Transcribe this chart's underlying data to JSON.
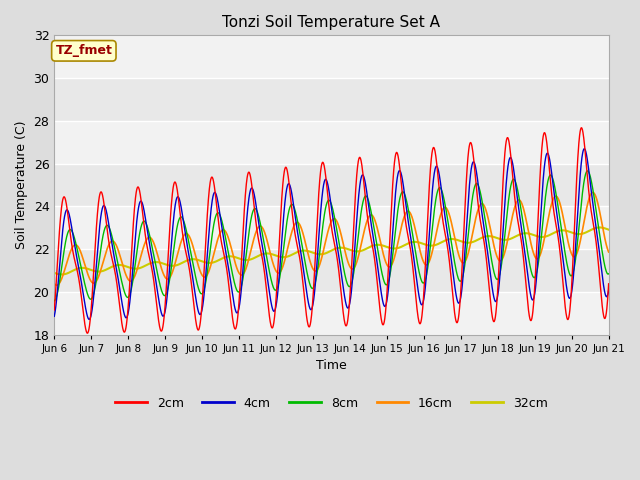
{
  "title": "Tonzi Soil Temperature Set A",
  "xlabel": "Time",
  "ylabel": "Soil Temperature (C)",
  "ylim": [
    18,
    32
  ],
  "yticks": [
    18,
    20,
    22,
    24,
    26,
    28,
    30,
    32
  ],
  "x_labels": [
    "Jun 6",
    "Jun 7",
    "Jun 8",
    "Jun 9",
    "Jun 10",
    "Jun 11",
    "Jun 12",
    "Jun 13",
    "Jun 14",
    "Jun 15",
    "Jun 16",
    "Jun 17",
    "Jun 18",
    "Jun 19",
    "Jun 20",
    "Jun 21"
  ],
  "annotation": "TZ_fmet",
  "annotation_bg": "#ffffcc",
  "annotation_border": "#aa8800",
  "annotation_text_color": "#990000",
  "colors": {
    "2cm": "#ff0000",
    "4cm": "#0000cc",
    "8cm": "#00bb00",
    "16cm": "#ff8800",
    "32cm": "#cccc00"
  },
  "legend_labels": [
    "2cm",
    "4cm",
    "8cm",
    "16cm",
    "32cm"
  ],
  "fig_bg": "#dddddd",
  "plot_bg": "#e8e8e8",
  "plot_bg_light": "#f2f2f2",
  "n_days": 15,
  "points_per_day": 144
}
